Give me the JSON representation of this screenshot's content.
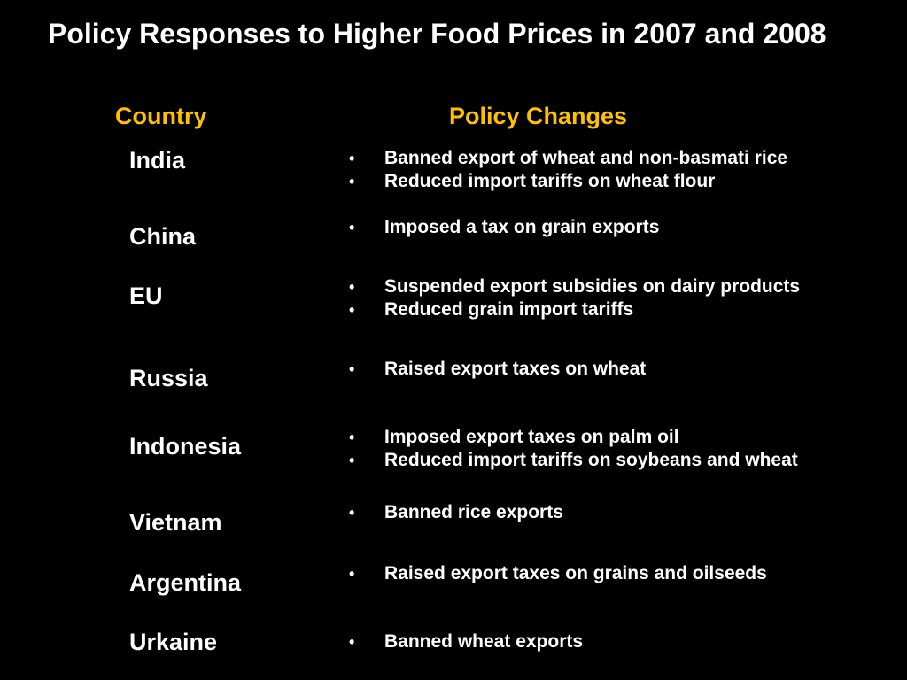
{
  "slide": {
    "title": "Policy Responses to Higher Food Prices in 2007 and 2008",
    "headers": {
      "country": "Country",
      "policy_changes": "Policy Changes"
    },
    "header_color": "#ffc000",
    "background_color": "#000000",
    "bullet_glyph": "•",
    "rows": [
      {
        "country": "India",
        "policies": [
          "Banned export of wheat and non-basmati rice",
          "Reduced import tariffs on wheat flour"
        ]
      },
      {
        "country": "China",
        "policies": [
          "Imposed a tax on grain exports"
        ]
      },
      {
        "country": "EU",
        "policies": [
          "Suspended export subsidies on dairy products",
          "Reduced grain import tariffs"
        ]
      },
      {
        "country": "Russia",
        "policies": [
          "Raised export taxes on wheat"
        ]
      },
      {
        "country": "Indonesia",
        "policies": [
          "Imposed export taxes on palm oil",
          "Reduced import tariffs on soybeans and wheat"
        ]
      },
      {
        "country": "Vietnam",
        "policies": [
          "Banned rice exports"
        ]
      },
      {
        "country": "Argentina",
        "policies": [
          "Raised export taxes on grains and oilseeds"
        ]
      },
      {
        "country": "Urkaine",
        "policies": [
          "Banned wheat exports"
        ]
      }
    ]
  }
}
